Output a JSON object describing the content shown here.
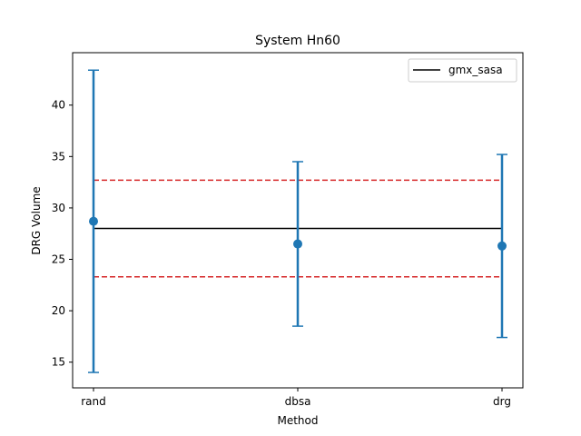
{
  "chart_data": {
    "type": "scatter",
    "title": "System Hn60",
    "xlabel": "Method",
    "ylabel": "DRG Volume",
    "categories": [
      "rand",
      "dbsa",
      "drg"
    ],
    "series": [
      {
        "name": "",
        "color": "#1f77b4",
        "values": [
          28.7,
          26.5,
          26.3
        ],
        "error_low": [
          14.0,
          18.5,
          17.4
        ],
        "error_high": [
          43.4,
          34.5,
          35.2
        ]
      }
    ],
    "reference": {
      "name": "gmx_sasa",
      "color": "#000000",
      "value": 28.0,
      "band_low": 23.3,
      "band_high": 32.7,
      "band_color": "#d62728"
    },
    "ylim": [
      12.5,
      45.1
    ],
    "yticks": [
      15,
      20,
      25,
      30,
      35,
      40
    ],
    "grid": false,
    "legend_position": "top-right"
  }
}
